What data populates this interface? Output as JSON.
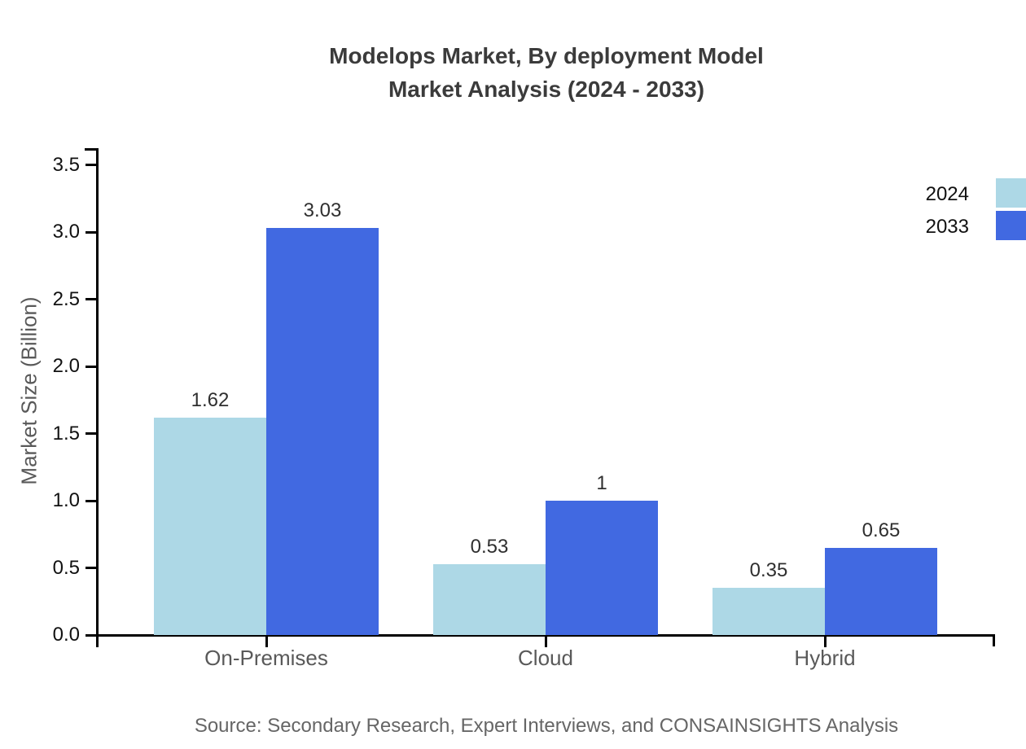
{
  "title": {
    "line1": "Modelops Market, By deployment Model",
    "line2": "Market Analysis (2024 - 2033)"
  },
  "source": "Source: Secondary Research, Expert Interviews, and CONSAINSIGHTS Analysis",
  "colors": {
    "series_2024": "#ADD8E6",
    "series_2033": "#4169E1",
    "axis": "#000000",
    "title_text": "#3b3b3b",
    "tick_text": "#111111",
    "category_text": "#595959",
    "value_text": "#2f2f2f",
    "source_text": "#666666"
  },
  "legend": {
    "items": [
      {
        "label": "2024",
        "color": "#ADD8E6"
      },
      {
        "label": "2033",
        "color": "#4169E1"
      }
    ]
  },
  "chart_data": {
    "type": "bar",
    "title": "Modelops Market, By deployment Model Market Analysis (2024 - 2033)",
    "categories": [
      "On-Premises",
      "Cloud",
      "Hybrid"
    ],
    "series": [
      {
        "name": "2024",
        "color": "#ADD8E6",
        "values": [
          1.62,
          0.53,
          0.35
        ]
      },
      {
        "name": "2033",
        "color": "#4169E1",
        "values": [
          3.03,
          1,
          0.65
        ]
      }
    ],
    "bar_labels": [
      "1.62",
      "3.03",
      "0.53",
      "1",
      "0.35",
      "0.65"
    ],
    "xlabel": "",
    "ylabel": "Market Size (Billion)",
    "ylim": [
      0,
      3.6
    ],
    "yticks": [
      "0.0",
      "0.5",
      "1.0",
      "1.5",
      "2.0",
      "2.5",
      "3.0",
      "3.5"
    ],
    "grid": false,
    "legend_position": "upper-right-edge"
  }
}
